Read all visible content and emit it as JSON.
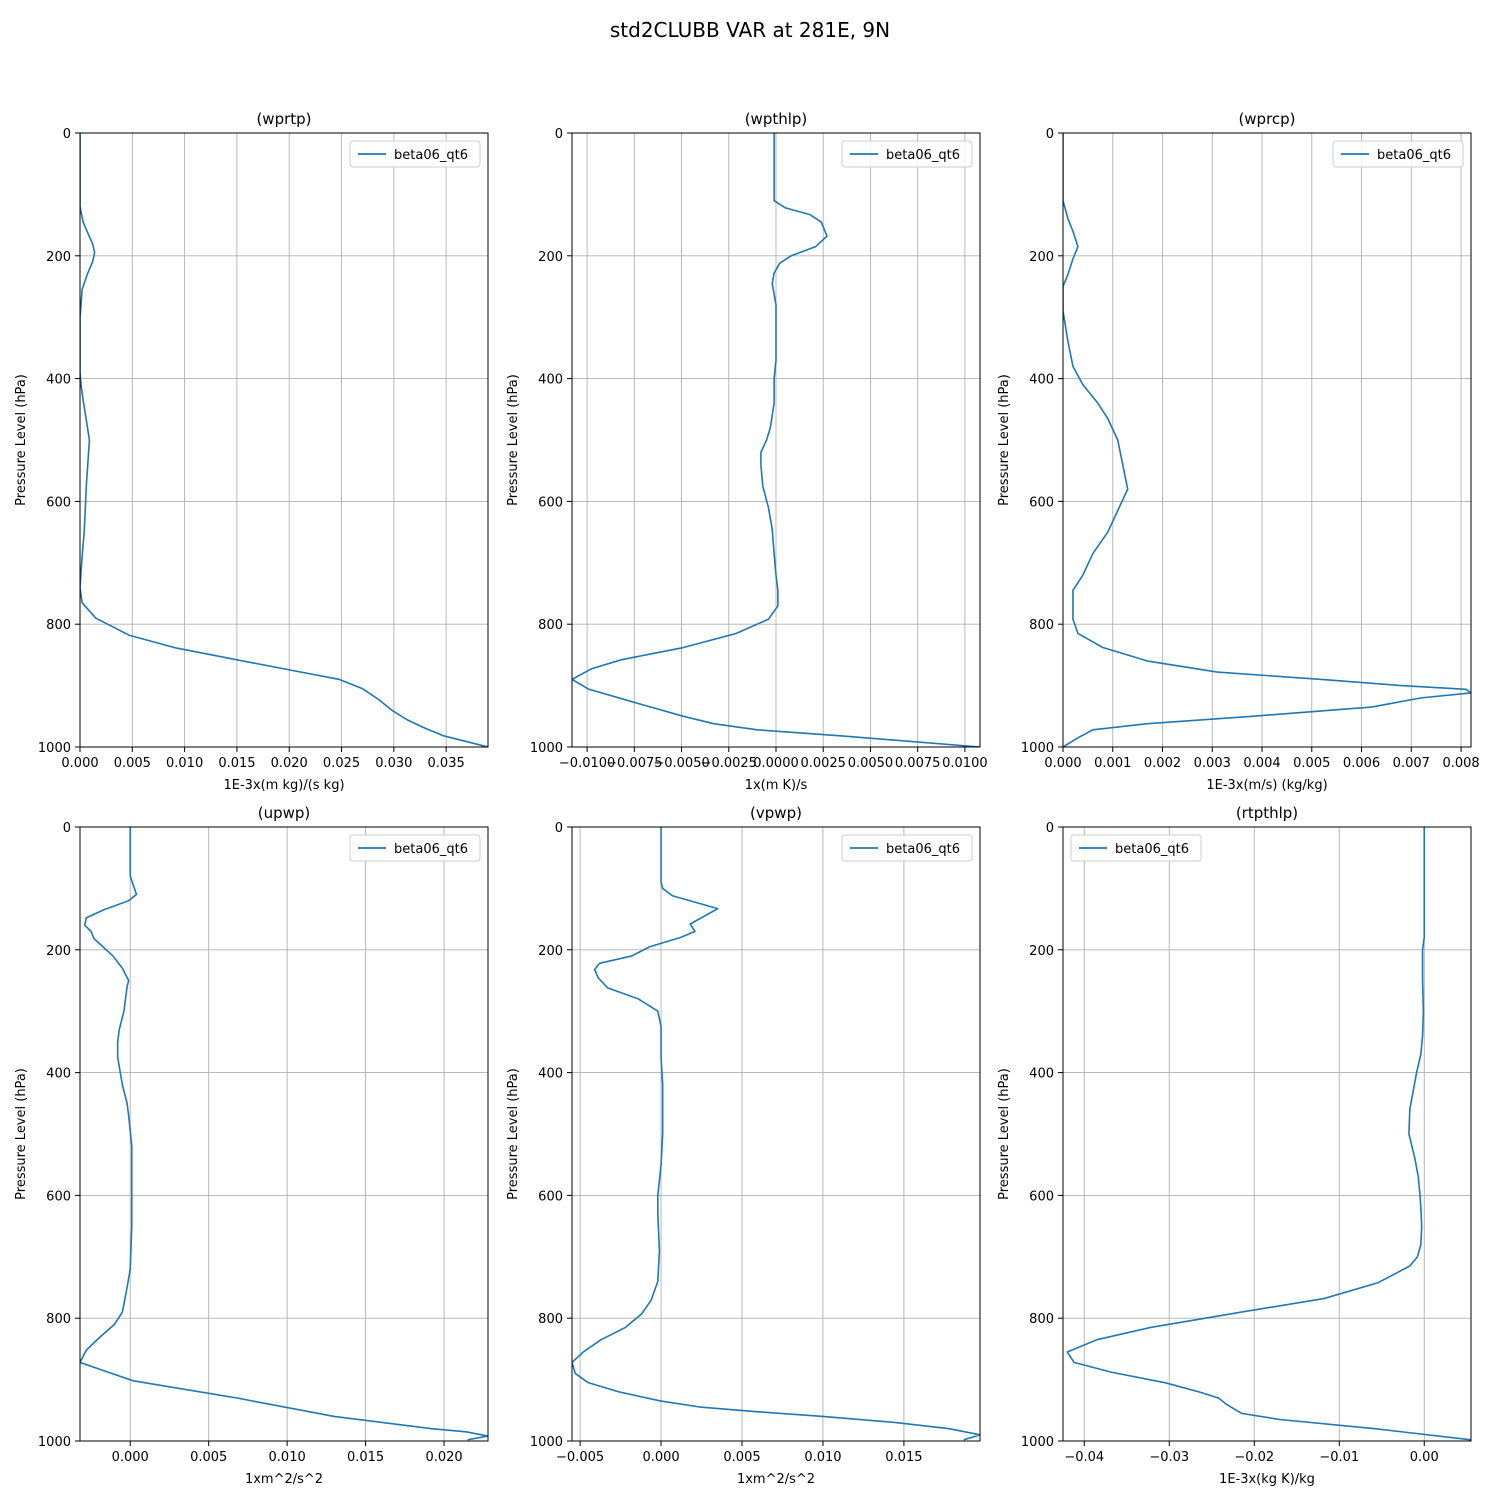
{
  "figure_title": "std2CLUBB VAR at 281E, 9N",
  "colors": {
    "line": "#1f77b4",
    "grid": "#b0b0b0",
    "axes": "#000000"
  },
  "chart_data": [
    {
      "type": "line",
      "title": "(wprtp)",
      "xlabel": "1E-3x(m kg)/(s kg)",
      "ylabel": "Pressure Level (hPa)",
      "xlim": [
        0.0,
        0.039
      ],
      "ylim": [
        1000,
        0
      ],
      "xticks": [
        0.0,
        0.005,
        0.01,
        0.015,
        0.02,
        0.025,
        0.03,
        0.035
      ],
      "xtick_labels": [
        "0.000",
        "0.005",
        "0.010",
        "0.015",
        "0.020",
        "0.025",
        "0.030",
        "0.035"
      ],
      "yticks": [
        0,
        200,
        400,
        600,
        800,
        1000
      ],
      "ytick_labels": [
        "0",
        "200",
        "400",
        "600",
        "800",
        "1000"
      ],
      "grid": true,
      "legend": "upper right",
      "series": [
        {
          "name": "beta06_qt6",
          "x": [
            0.0,
            0.0,
            0.0003,
            0.0008,
            0.0012,
            0.0014,
            0.0012,
            0.0007,
            0.0002,
            0.0001,
            0.0,
            0.0,
            0.0,
            0.0,
            0.0001,
            0.0003,
            0.0009,
            0.0006,
            0.0005,
            0.0004,
            0.0002,
            0.0,
            0.0002,
            0.0015,
            0.0047,
            0.009,
            0.015,
            0.0202,
            0.0248,
            0.027,
            0.0285,
            0.0298,
            0.0312,
            0.0328,
            0.0348,
            0.039
          ],
          "y": [
            0,
            120,
            145,
            165,
            180,
            195,
            210,
            230,
            255,
            280,
            300,
            330,
            360,
            390,
            410,
            435,
            500,
            575,
            615,
            650,
            690,
            740,
            765,
            790,
            818,
            838,
            858,
            875,
            890,
            905,
            922,
            940,
            955,
            968,
            982,
            1000
          ]
        }
      ]
    },
    {
      "type": "line",
      "title": "(wpthlp)",
      "xlabel": "1x(m K)/s",
      "ylabel": "Pressure Level (hPa)",
      "xlim": [
        -0.0108,
        0.0108
      ],
      "ylim": [
        1000,
        0
      ],
      "xticks": [
        -0.01,
        -0.0075,
        -0.005,
        -0.0025,
        0.0,
        0.0025,
        0.005,
        0.0075,
        0.01
      ],
      "xtick_labels": [
        "−0.0100",
        "−0.0075",
        "−0.0050",
        "−0.0025",
        "0.0000",
        "0.0025",
        "0.0050",
        "0.0075",
        "0.0100"
      ],
      "yticks": [
        0,
        200,
        400,
        600,
        800,
        1000
      ],
      "ytick_labels": [
        "0",
        "200",
        "400",
        "600",
        "800",
        "1000"
      ],
      "grid": true,
      "legend": "upper right",
      "series": [
        {
          "name": "beta06_qt6",
          "x": [
            -0.0001,
            -0.0001,
            0.0,
            0.0005,
            0.0018,
            0.0024,
            0.0027,
            0.0021,
            0.0008,
            0.0002,
            -0.0001,
            -0.0002,
            0.0,
            0.0,
            0.0,
            -0.0001,
            -0.0001,
            -0.0003,
            -0.0005,
            -0.0008,
            -0.0008,
            -0.0007,
            -0.0004,
            -0.0002,
            -0.0001,
            0.0,
            0.0001,
            0.0001,
            -0.0004,
            -0.0021,
            -0.0049,
            -0.0082,
            -0.0098,
            -0.0108,
            -0.0099,
            -0.0072,
            -0.0049,
            -0.0033,
            -0.001,
            0.0035,
            0.0108
          ],
          "y": [
            0,
            110,
            112,
            122,
            133,
            145,
            168,
            185,
            200,
            212,
            228,
            245,
            280,
            330,
            370,
            400,
            440,
            480,
            500,
            520,
            540,
            575,
            610,
            645,
            685,
            720,
            745,
            770,
            792,
            815,
            838,
            858,
            873,
            890,
            906,
            930,
            950,
            962,
            972,
            982,
            1000
          ]
        }
      ]
    },
    {
      "type": "line",
      "title": "(wprcp)",
      "xlabel": "1E-3x(m/s) (kg/kg)",
      "ylabel": "Pressure Level (hPa)",
      "xlim": [
        0.0,
        0.0082
      ],
      "ylim": [
        1000,
        0
      ],
      "xticks": [
        0.0,
        0.001,
        0.002,
        0.003,
        0.004,
        0.005,
        0.006,
        0.007,
        0.008
      ],
      "xtick_labels": [
        "0.000",
        "0.001",
        "0.002",
        "0.003",
        "0.004",
        "0.005",
        "0.006",
        "0.007",
        "0.008"
      ],
      "yticks": [
        0,
        200,
        400,
        600,
        800,
        1000
      ],
      "ytick_labels": [
        "0",
        "200",
        "400",
        "600",
        "800",
        "1000"
      ],
      "grid": true,
      "legend": "upper right",
      "series": [
        {
          "name": "beta06_qt6",
          "x": [
            0.0,
            0.0,
            0.0001,
            0.0002,
            0.0003,
            0.0002,
            0.0001,
            0.0,
            0.0,
            0.0001,
            0.0002,
            0.0004,
            0.0007,
            0.0009,
            0.0011,
            0.0012,
            0.0013,
            0.0011,
            0.0009,
            0.0006,
            0.0004,
            0.0002,
            0.0002,
            0.0002,
            0.0003,
            0.0008,
            0.0017,
            0.0031,
            0.0052,
            0.0068,
            0.0081,
            0.0082,
            0.0072,
            0.0062,
            0.0038,
            0.0017,
            0.0006,
            0.0003,
            0.0001,
            0.0
          ],
          "y": [
            0,
            110,
            140,
            160,
            185,
            205,
            230,
            250,
            290,
            340,
            380,
            410,
            440,
            465,
            500,
            540,
            580,
            615,
            650,
            685,
            720,
            745,
            770,
            792,
            815,
            838,
            860,
            878,
            890,
            900,
            906,
            912,
            920,
            935,
            950,
            962,
            972,
            985,
            995,
            1000
          ]
        }
      ]
    },
    {
      "type": "line",
      "title": "(upwp)",
      "xlabel": "1xm^2/s^2",
      "ylabel": "Pressure Level (hPa)",
      "xlim": [
        -0.0032,
        0.0228
      ],
      "ylim": [
        1000,
        0
      ],
      "xticks": [
        0.0,
        0.005,
        0.01,
        0.015,
        0.02
      ],
      "xtick_labels": [
        "0.000",
        "0.005",
        "0.010",
        "0.015",
        "0.020"
      ],
      "yticks": [
        0,
        200,
        400,
        600,
        800,
        1000
      ],
      "ytick_labels": [
        "0",
        "200",
        "400",
        "600",
        "800",
        "1000"
      ],
      "grid": true,
      "legend": "upper right",
      "series": [
        {
          "name": "beta06_qt6",
          "x": [
            0.0,
            0.0,
            0.0004,
            -0.0001,
            -0.0017,
            -0.0028,
            -0.0029,
            -0.0025,
            -0.0023,
            -0.0011,
            -0.0005,
            -0.0001,
            -0.0002,
            -0.0004,
            -0.0007,
            -0.0008,
            -0.0008,
            -0.0005,
            -0.0002,
            -0.0001,
            0.0001,
            0.0001,
            0.0001,
            0.0,
            -0.0002,
            -0.0005,
            -0.001,
            -0.0019,
            -0.0028,
            -0.0032,
            -0.0014,
            0.0002,
            0.0068,
            0.013,
            0.0192,
            0.0214,
            0.0228,
            0.0215
          ],
          "y": [
            0,
            80,
            110,
            120,
            135,
            148,
            160,
            170,
            182,
            210,
            230,
            250,
            260,
            300,
            330,
            350,
            375,
            420,
            450,
            470,
            520,
            575,
            650,
            720,
            750,
            790,
            810,
            830,
            852,
            872,
            888,
            902,
            930,
            960,
            980,
            985,
            992,
            998
          ]
        }
      ]
    },
    {
      "type": "line",
      "title": "(vpwp)",
      "xlabel": "1xm^2/s^2",
      "ylabel": "Pressure Level (hPa)",
      "xlim": [
        -0.0055,
        0.0197
      ],
      "ylim": [
        1000,
        0
      ],
      "xticks": [
        -0.005,
        0.0,
        0.005,
        0.01,
        0.015
      ],
      "xtick_labels": [
        "−0.005",
        "0.000",
        "0.005",
        "0.010",
        "0.015"
      ],
      "yticks": [
        0,
        200,
        400,
        600,
        800,
        1000
      ],
      "ytick_labels": [
        "0",
        "200",
        "400",
        "600",
        "800",
        "1000"
      ],
      "grid": true,
      "legend": "upper right",
      "series": [
        {
          "name": "beta06_qt6",
          "x": [
            0.0,
            0.0,
            0.0001,
            0.0007,
            0.0035,
            0.0018,
            0.0021,
            0.0012,
            -0.0007,
            -0.0018,
            -0.0038,
            -0.0041,
            -0.0039,
            -0.0033,
            -0.0014,
            -0.0002,
            0.0,
            0.0,
            0.0001,
            0.0001,
            0.0,
            -0.0002,
            -0.0002,
            -0.0001,
            -0.0002,
            -0.0006,
            -0.0012,
            -0.0022,
            -0.0037,
            -0.0048,
            -0.0055,
            -0.0053,
            -0.0045,
            -0.0026,
            0.0,
            0.0025,
            0.0058,
            0.01,
            0.0145,
            0.0178,
            0.0197,
            0.0187
          ],
          "y": [
            0,
            90,
            100,
            112,
            133,
            158,
            170,
            180,
            195,
            210,
            222,
            232,
            245,
            262,
            280,
            300,
            325,
            375,
            420,
            500,
            550,
            600,
            630,
            690,
            740,
            770,
            793,
            815,
            835,
            855,
            872,
            890,
            905,
            920,
            935,
            945,
            952,
            960,
            970,
            980,
            990,
            998
          ]
        }
      ]
    },
    {
      "type": "line",
      "title": "(rtpthlp)",
      "xlabel": "1E-3x(kg K)/kg",
      "ylabel": "Pressure Level (hPa)",
      "xlim": [
        -0.0425,
        0.0055
      ],
      "ylim": [
        1000,
        0
      ],
      "xticks": [
        -0.04,
        -0.03,
        -0.02,
        -0.01,
        0.0
      ],
      "xtick_labels": [
        "−0.04",
        "−0.03",
        "−0.02",
        "−0.01",
        "0.00"
      ],
      "yticks": [
        0,
        200,
        400,
        600,
        800,
        1000
      ],
      "ytick_labels": [
        "0",
        "200",
        "400",
        "600",
        "800",
        "1000"
      ],
      "grid": true,
      "legend": "upper left",
      "series": [
        {
          "name": "beta06_qt6",
          "x": [
            0.0,
            0.0,
            -0.0002,
            -0.0002,
            -0.0001,
            -0.0002,
            -0.0004,
            -0.0009,
            -0.0013,
            -0.0017,
            -0.0018,
            -0.0011,
            -0.0007,
            -0.0005,
            -0.0004,
            -0.0003,
            -0.0004,
            -0.0008,
            -0.0017,
            -0.0054,
            -0.0118,
            -0.0215,
            -0.0322,
            -0.0385,
            -0.042,
            -0.0412,
            -0.0368,
            -0.0305,
            -0.0265,
            -0.0242,
            -0.0233,
            -0.0215,
            -0.017,
            -0.0058,
            0.0055
          ],
          "y": [
            0,
            180,
            200,
            250,
            300,
            340,
            370,
            400,
            430,
            460,
            500,
            540,
            570,
            600,
            620,
            650,
            680,
            700,
            715,
            742,
            768,
            790,
            815,
            835,
            855,
            872,
            888,
            905,
            920,
            930,
            940,
            955,
            965,
            980,
            998
          ]
        }
      ]
    }
  ]
}
